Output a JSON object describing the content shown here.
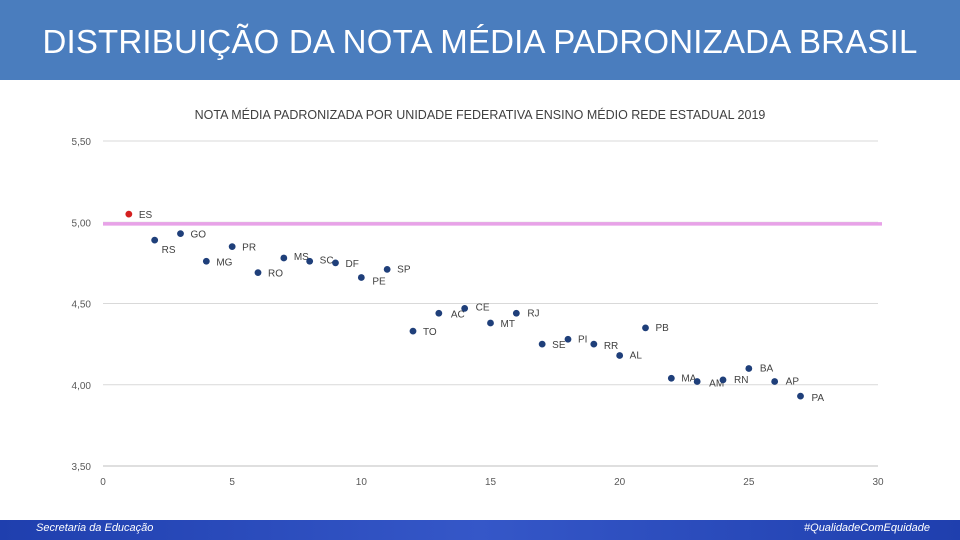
{
  "header": {
    "title": "DISTRIBUIÇÃO DA NOTA MÉDIA PADRONIZADA BRASIL"
  },
  "footer": {
    "left": "Secretaria  da Educação",
    "right": "#QualidadeComEquidade"
  },
  "colors": {
    "header_bg": "#4a7dbe",
    "point": "#1f3f7a",
    "highlight_point": "#d42020",
    "reference_line": "#e8a2e8"
  },
  "chart_data": {
    "type": "scatter",
    "title": "NOTA MÉDIA PADRONIZADA POR UNIDADE FEDERATIVA ENSINO MÉDIO REDE ESTADUAL 2019",
    "xlabel": "",
    "ylabel": "",
    "xlim": [
      0,
      30
    ],
    "ylim": [
      3.5,
      5.5
    ],
    "x_ticks": [
      "0",
      "5",
      "10",
      "15",
      "20",
      "25",
      "30"
    ],
    "y_ticks": [
      "3,50",
      "4,00",
      "4,50",
      "5,00",
      "5,50"
    ],
    "grid": "horizontal",
    "reference_line": {
      "y": 4.99
    },
    "points": [
      {
        "label": "ES",
        "x": 1,
        "y": 5.05,
        "highlight": true
      },
      {
        "label": "RS",
        "x": 2,
        "y": 4.89
      },
      {
        "label": "GO",
        "x": 3,
        "y": 4.93
      },
      {
        "label": "MG",
        "x": 4,
        "y": 4.76
      },
      {
        "label": "PR",
        "x": 5,
        "y": 4.85
      },
      {
        "label": "RO",
        "x": 6,
        "y": 4.69
      },
      {
        "label": "MS",
        "x": 7,
        "y": 4.78
      },
      {
        "label": "SC",
        "x": 8,
        "y": 4.76
      },
      {
        "label": "DF",
        "x": 9,
        "y": 4.75
      },
      {
        "label": "PE",
        "x": 10,
        "y": 4.66
      },
      {
        "label": "SP",
        "x": 11,
        "y": 4.71
      },
      {
        "label": "TO",
        "x": 12,
        "y": 4.33
      },
      {
        "label": "AC",
        "x": 13,
        "y": 4.44
      },
      {
        "label": "CE",
        "x": 14,
        "y": 4.47
      },
      {
        "label": "MT",
        "x": 15,
        "y": 4.38
      },
      {
        "label": "RJ",
        "x": 16,
        "y": 4.44
      },
      {
        "label": "SE",
        "x": 17,
        "y": 4.25
      },
      {
        "label": "PI",
        "x": 18,
        "y": 4.28
      },
      {
        "label": "RR",
        "x": 19,
        "y": 4.25
      },
      {
        "label": "AL",
        "x": 20,
        "y": 4.18
      },
      {
        "label": "PB",
        "x": 21,
        "y": 4.35
      },
      {
        "label": "MA",
        "x": 22,
        "y": 4.04
      },
      {
        "label": "AM",
        "x": 23,
        "y": 4.02
      },
      {
        "label": "RN",
        "x": 24,
        "y": 4.03
      },
      {
        "label": "BA",
        "x": 25,
        "y": 4.1
      },
      {
        "label": "AP",
        "x": 26,
        "y": 4.02
      },
      {
        "label": "PA",
        "x": 27,
        "y": 3.93
      }
    ]
  }
}
